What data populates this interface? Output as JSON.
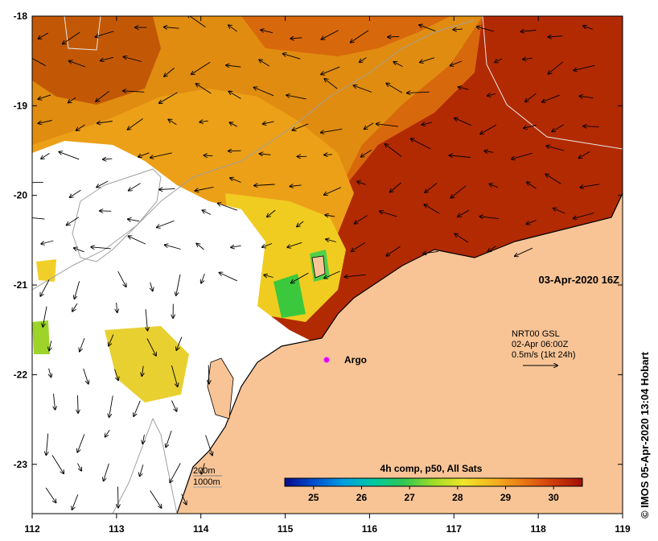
{
  "map": {
    "date_label": "03-Apr-2020 16Z",
    "current_source": {
      "line1": "NRT00 GSL",
      "line2": "02-Apr 06:00Z",
      "line3": "0.5m/s (1kt 24h)"
    },
    "argo_label": "Argo",
    "credit": "© IMOS 05-Apr-2020 13:04 Hobart",
    "bathy_labels": {
      "b200": "200m",
      "b1000": "1000m"
    },
    "lon_ticks": [
      "112",
      "113",
      "114",
      "115",
      "116",
      "117",
      "118",
      "119"
    ],
    "lat_ticks": [
      "-18",
      "-19",
      "-20",
      "-21",
      "-22",
      "-23"
    ],
    "lon_range": [
      112,
      119
    ],
    "lat_range": [
      -23.55,
      -18
    ]
  },
  "colorbar": {
    "title": "4h comp, p50, All Sats",
    "ticks": [
      "25",
      "26",
      "27",
      "28",
      "29",
      "30"
    ],
    "range": [
      24.4,
      30.6
    ],
    "colors": [
      "#0a0a8c",
      "#0050d0",
      "#00a0e0",
      "#00c8a0",
      "#30c850",
      "#a0dc28",
      "#f0e628",
      "#f5b41e",
      "#eb7814",
      "#d23c0a",
      "#a01005"
    ]
  },
  "colors": {
    "land": "#f8c496",
    "sea_warm": "#b22a02",
    "sea_mid": "#d8680c",
    "sea_light": "#eca018",
    "sea_yellow": "#f0cc20",
    "sea_green": "#3cc83c",
    "no_data": "#ffffff"
  }
}
